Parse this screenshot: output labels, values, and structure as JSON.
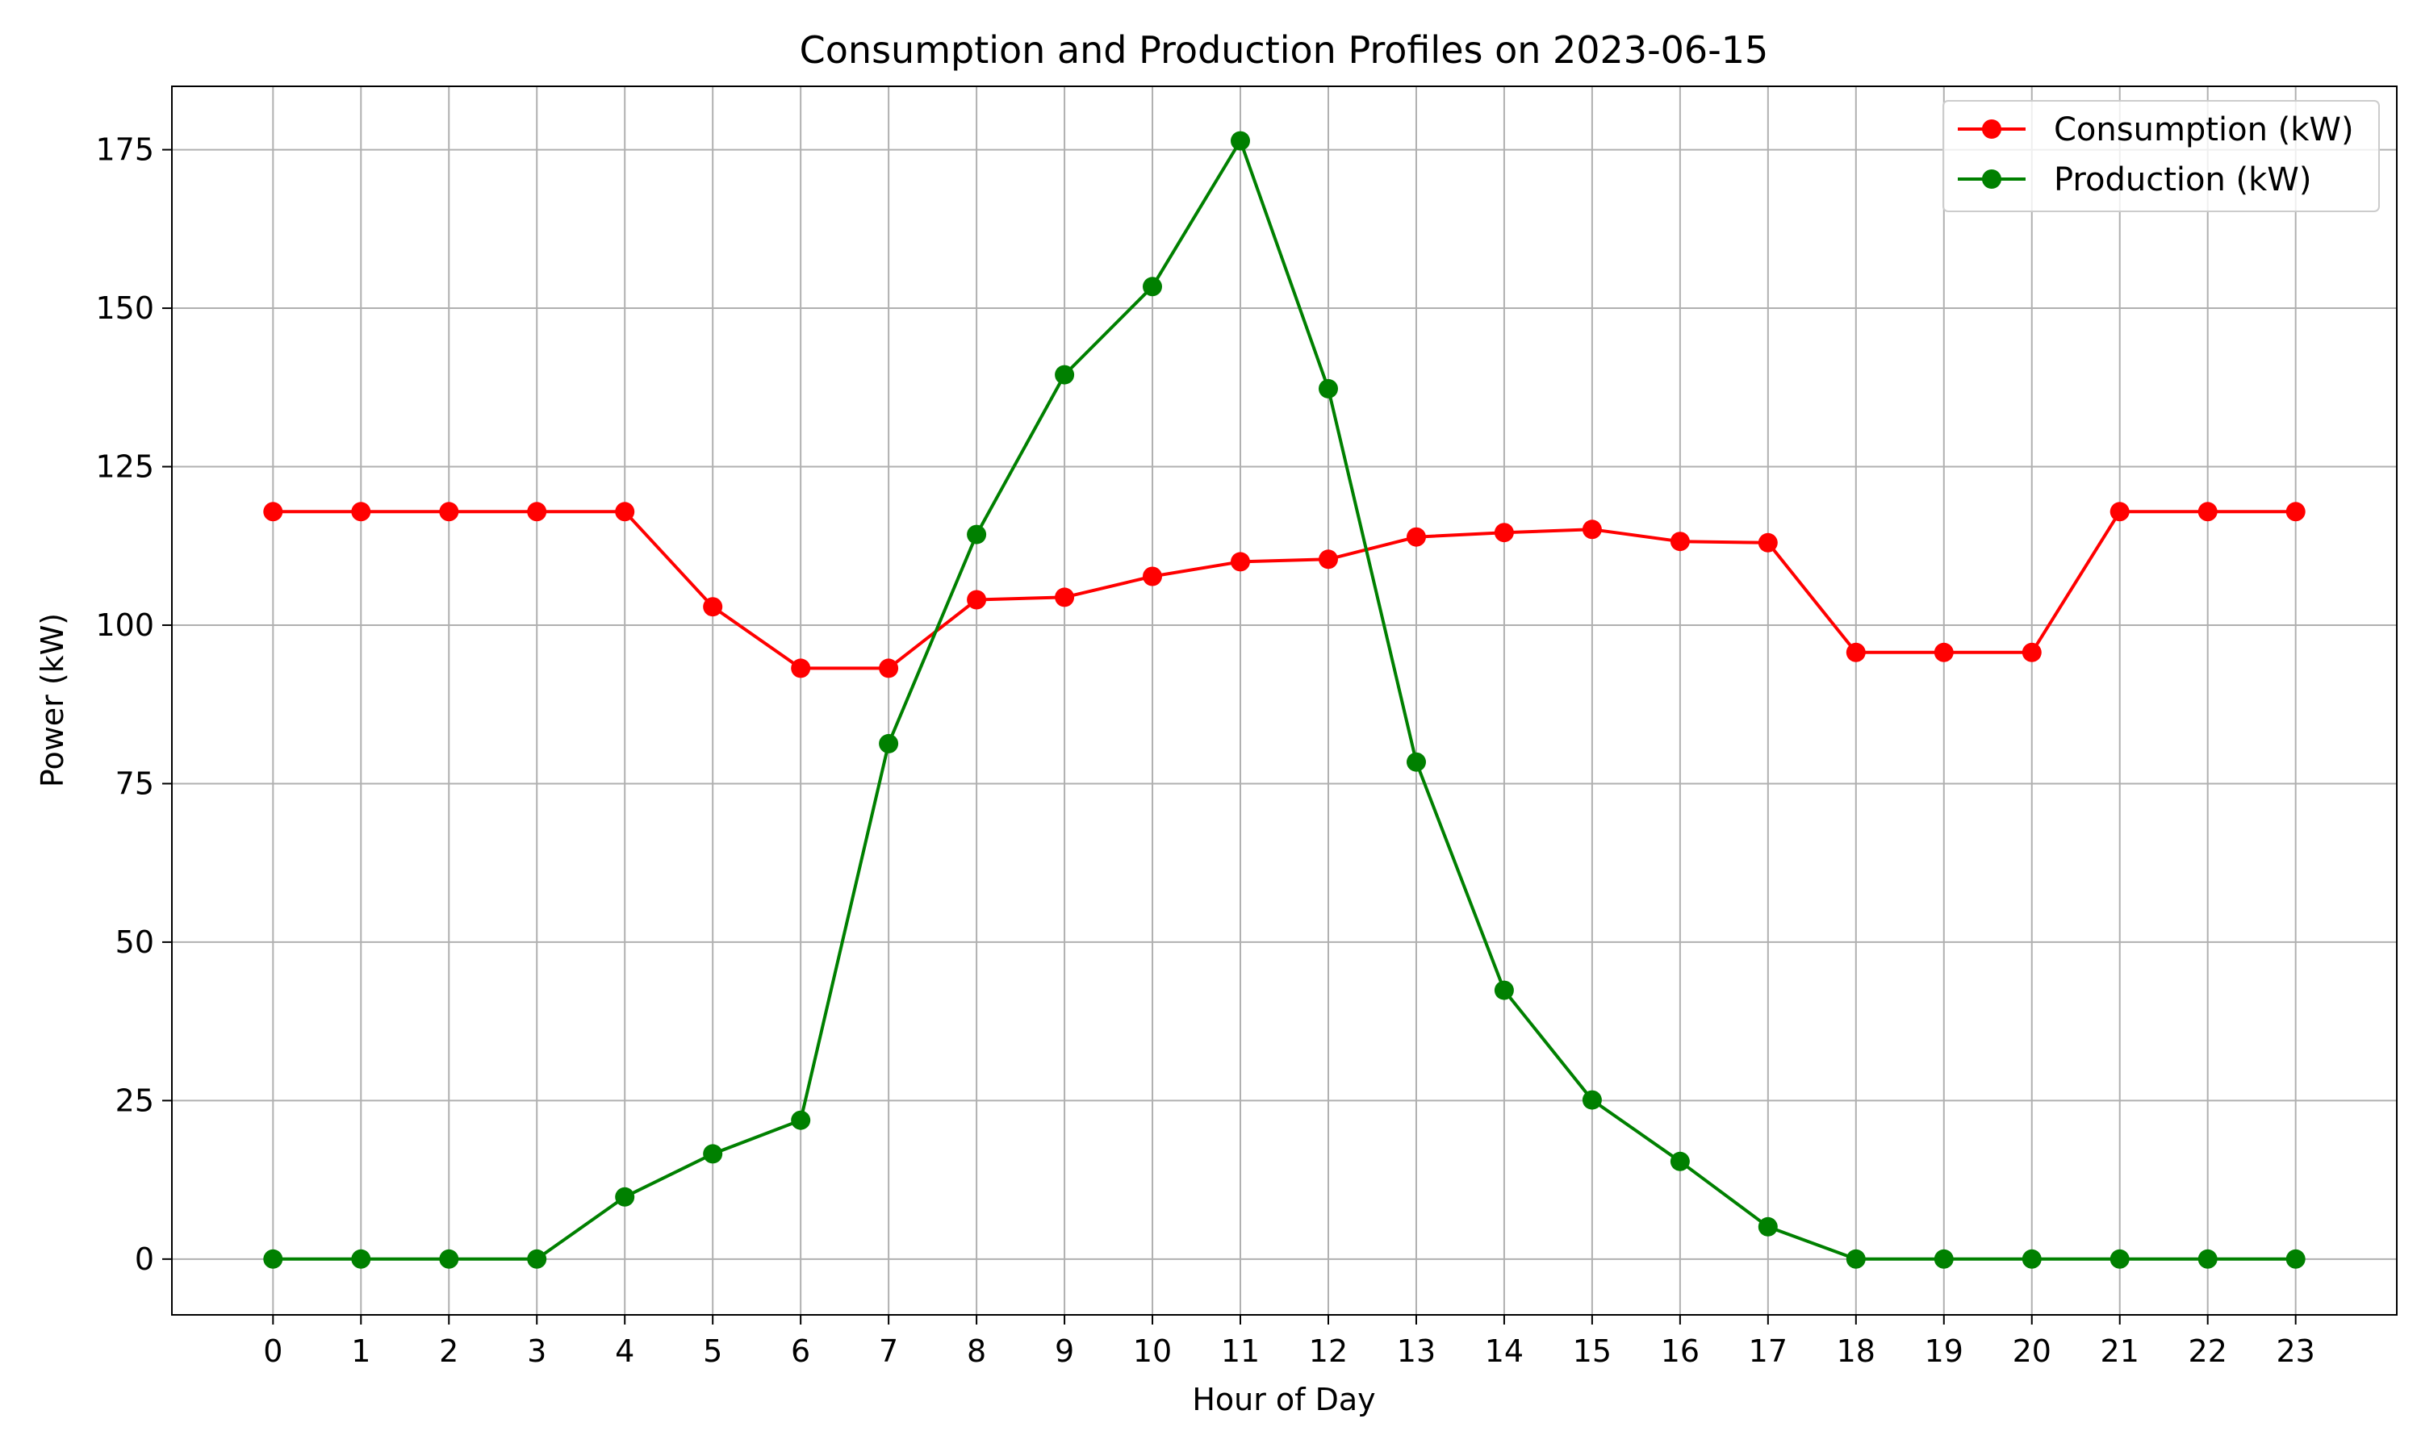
{
  "chart_data": {
    "type": "line",
    "title": "Consumption and Production Profiles on 2023-06-15",
    "xlabel": "Hour of Day",
    "ylabel": "Power (kW)",
    "x": [
      0,
      1,
      2,
      3,
      4,
      5,
      6,
      7,
      8,
      9,
      10,
      11,
      12,
      13,
      14,
      15,
      16,
      17,
      18,
      19,
      20,
      21,
      22,
      23
    ],
    "xticks": [
      "0",
      "1",
      "2",
      "3",
      "4",
      "5",
      "6",
      "7",
      "8",
      "9",
      "10",
      "11",
      "12",
      "13",
      "14",
      "15",
      "16",
      "17",
      "18",
      "19",
      "20",
      "21",
      "22",
      "23"
    ],
    "yticks": [
      "0",
      "25",
      "50",
      "75",
      "100",
      "125",
      "150",
      "175"
    ],
    "xlim": [
      -1.15,
      24.15
    ],
    "ylim": [
      -8.8,
      185
    ],
    "grid": true,
    "legend_position": "top-right",
    "series": [
      {
        "name": "Consumption (kW)",
        "color": "#ff0000",
        "marker": "circle",
        "values": [
          117.9,
          117.9,
          117.9,
          117.9,
          117.9,
          102.9,
          93.2,
          93.2,
          104.0,
          104.4,
          107.7,
          110.0,
          110.4,
          113.9,
          114.6,
          115.1,
          113.2,
          113.0,
          95.7,
          95.7,
          95.7,
          117.9,
          117.9,
          117.9
        ]
      },
      {
        "name": "Production (kW)",
        "color": "#008000",
        "marker": "circle",
        "values": [
          0,
          0,
          0,
          0,
          9.8,
          16.6,
          21.9,
          81.3,
          114.3,
          139.5,
          153.4,
          176.4,
          137.3,
          78.4,
          42.4,
          25.1,
          15.4,
          5.1,
          0,
          0,
          0,
          0,
          0,
          0
        ]
      }
    ]
  }
}
